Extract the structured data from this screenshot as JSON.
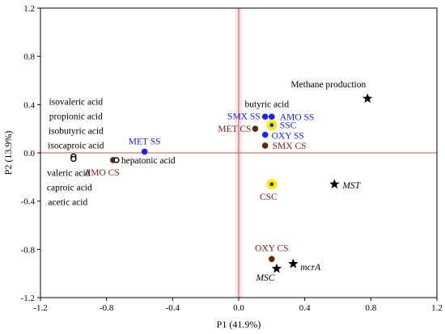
{
  "chart_data": {
    "type": "scatter",
    "xlabel": "P1 (41.9%)",
    "ylabel": "P2 (13.9%)",
    "xlim": [
      -1.2,
      1.2
    ],
    "ylim": [
      -1.2,
      1.2
    ],
    "xticks": [
      "-1.2",
      "-0.8",
      "-0.4",
      "0.0",
      "0.4",
      "0.8",
      "1.2"
    ],
    "yticks": [
      "1.2",
      "0.8",
      "0.4",
      "0.0",
      "-0.4",
      "-0.8",
      "-1.2"
    ],
    "grid": false,
    "origin_lines_color": "#c0504d",
    "points": [
      {
        "label": "MET SS",
        "x": -0.57,
        "y": 0.01,
        "marker": "dot",
        "fill": "#1f22e0",
        "text_color": "#1f22e0"
      },
      {
        "label": "AMO SS",
        "x": 0.2,
        "y": 0.3,
        "marker": "dot",
        "fill": "#1f22e0",
        "text_color": "#1f22e0"
      },
      {
        "label": "SMX SS",
        "x": 0.16,
        "y": 0.3,
        "marker": "dot",
        "fill": "#1f22e0",
        "text_color": "#1f22e0"
      },
      {
        "label": "OXY SS",
        "x": 0.16,
        "y": 0.15,
        "marker": "dot",
        "fill": "#1f22e0",
        "text_color": "#1f22e0"
      },
      {
        "label": "SSC",
        "x": 0.2,
        "y": 0.23,
        "marker": "halo",
        "fill": "#1f22e0",
        "text_color": "#1f22e0"
      },
      {
        "label": "MET CS",
        "x": 0.1,
        "y": 0.2,
        "marker": "dot",
        "fill": "#5a2a17",
        "text_color": "#7b1a1a"
      },
      {
        "label": "SMX CS",
        "x": 0.16,
        "y": 0.06,
        "marker": "dot",
        "fill": "#5a2a17",
        "text_color": "#7b1a1a"
      },
      {
        "label": "AMO CS",
        "x": -0.76,
        "y": -0.06,
        "marker": "dot",
        "fill": "#5a2a17",
        "text_color": "#7b1a1a"
      },
      {
        "label": "OXY CS",
        "x": 0.2,
        "y": -0.88,
        "marker": "dot",
        "fill": "#5a2a17",
        "text_color": "#7b1a1a"
      },
      {
        "label": "CSC",
        "x": 0.2,
        "y": -0.26,
        "marker": "halo",
        "fill": "#5a2a17",
        "text_color": "#7b1a1a"
      },
      {
        "label": "butyric acid",
        "x": 0.2,
        "y": 0.3,
        "marker": "none",
        "text_color": "#000000"
      },
      {
        "label": "hepatonic acid",
        "x": -0.74,
        "y": -0.06,
        "marker": "ring",
        "text_color": "#000000"
      },
      {
        "label": "isovaleric acid",
        "x": -1.0,
        "y": -0.03,
        "marker": "ring",
        "text_color": "#000000"
      },
      {
        "label": "propionic acid",
        "x": -1.0,
        "y": -0.03,
        "marker": "ring",
        "text_color": "#000000"
      },
      {
        "label": "isobutyric acid",
        "x": -1.0,
        "y": -0.03,
        "marker": "ring",
        "text_color": "#000000"
      },
      {
        "label": "isocaproic acid",
        "x": -1.0,
        "y": -0.03,
        "marker": "ring",
        "text_color": "#000000"
      },
      {
        "label": "valeric acid",
        "x": -1.0,
        "y": -0.05,
        "marker": "ring",
        "text_color": "#000000"
      },
      {
        "label": "caproic acid",
        "x": -1.0,
        "y": -0.05,
        "marker": "ring",
        "text_color": "#000000"
      },
      {
        "label": "acetic acid",
        "x": -1.0,
        "y": -0.05,
        "marker": "ring",
        "text_color": "#000000"
      },
      {
        "label": "Methane production",
        "x": 0.78,
        "y": 0.45,
        "marker": "star",
        "text_color": "#000000"
      },
      {
        "label": "MST",
        "x": 0.58,
        "y": -0.26,
        "marker": "star",
        "text_color": "#000000",
        "italic": true
      },
      {
        "label": "mcrA",
        "x": 0.33,
        "y": -0.92,
        "marker": "star",
        "text_color": "#000000",
        "italic": true
      },
      {
        "label": "MSC",
        "x": 0.23,
        "y": -0.96,
        "marker": "star",
        "text_color": "#000000",
        "italic": true
      }
    ]
  }
}
